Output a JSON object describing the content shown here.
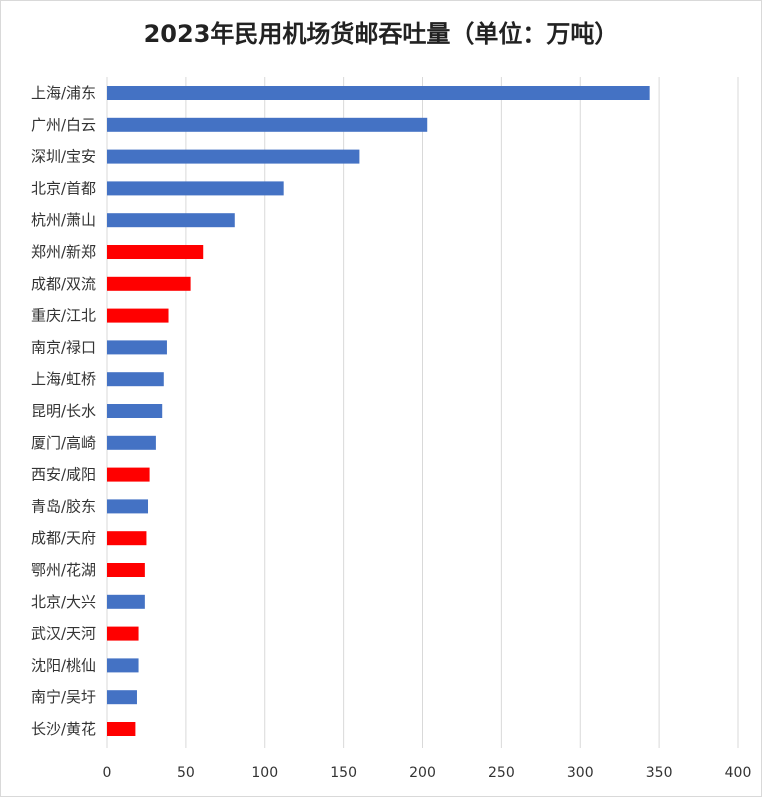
{
  "chart_data": {
    "type": "bar",
    "orientation": "horizontal",
    "title": "2023年民用机场货邮吞吐量（单位：万吨）",
    "xlabel": "",
    "ylabel": "",
    "xlim": [
      0,
      400
    ],
    "ticks": [
      0,
      50,
      100,
      150,
      200,
      250,
      300,
      350,
      400
    ],
    "grid": "vertical",
    "legend": "none",
    "colors": {
      "blue": "#4472c4",
      "red": "#ff0000",
      "grid": "#d9d9d9"
    },
    "bars": [
      {
        "category": "上海/浦东",
        "value": 344,
        "color": "blue"
      },
      {
        "category": "广州/白云",
        "value": 203,
        "color": "blue"
      },
      {
        "category": "深圳/宝安",
        "value": 160,
        "color": "blue"
      },
      {
        "category": "北京/首都",
        "value": 112,
        "color": "blue"
      },
      {
        "category": "杭州/萧山",
        "value": 81,
        "color": "blue"
      },
      {
        "category": "郑州/新郑",
        "value": 61,
        "color": "red"
      },
      {
        "category": "成都/双流",
        "value": 53,
        "color": "red"
      },
      {
        "category": "重庆/江北",
        "value": 39,
        "color": "red"
      },
      {
        "category": "南京/禄口",
        "value": 38,
        "color": "blue"
      },
      {
        "category": "上海/虹桥",
        "value": 36,
        "color": "blue"
      },
      {
        "category": "昆明/长水",
        "value": 35,
        "color": "blue"
      },
      {
        "category": "厦门/高崎",
        "value": 31,
        "color": "blue"
      },
      {
        "category": "西安/咸阳",
        "value": 27,
        "color": "red"
      },
      {
        "category": "青岛/胶东",
        "value": 26,
        "color": "blue"
      },
      {
        "category": "成都/天府",
        "value": 25,
        "color": "red"
      },
      {
        "category": "鄂州/花湖",
        "value": 24,
        "color": "red"
      },
      {
        "category": "北京/大兴",
        "value": 24,
        "color": "blue"
      },
      {
        "category": "武汉/天河",
        "value": 20,
        "color": "red"
      },
      {
        "category": "沈阳/桃仙",
        "value": 20,
        "color": "blue"
      },
      {
        "category": "南宁/吴圩",
        "value": 19,
        "color": "blue"
      },
      {
        "category": "长沙/黄花",
        "value": 18,
        "color": "red"
      }
    ]
  }
}
